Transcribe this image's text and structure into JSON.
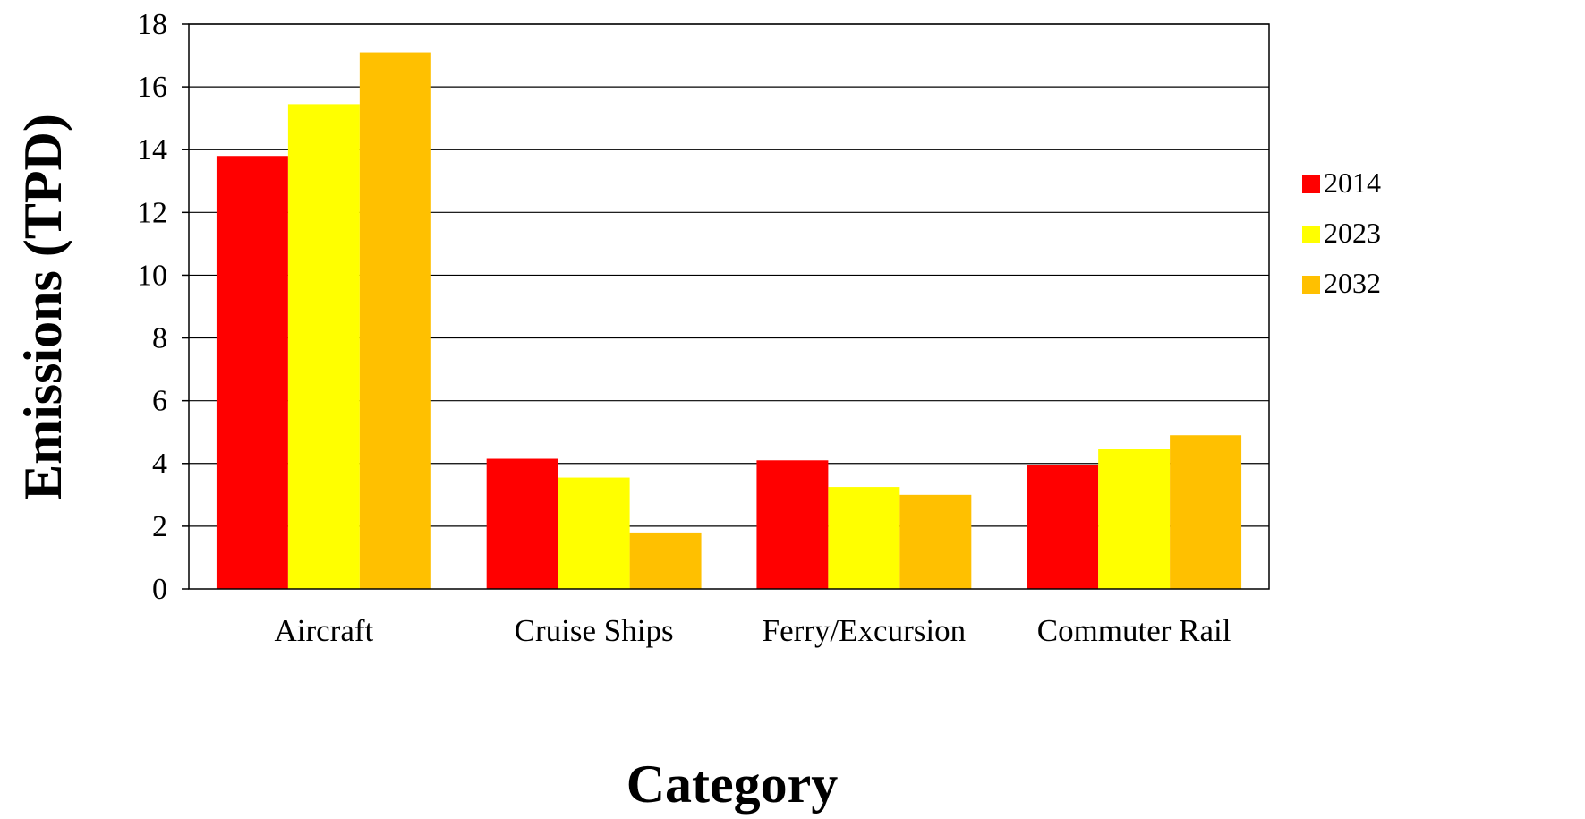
{
  "chart_data": {
    "type": "bar",
    "title": "",
    "xlabel": "Category",
    "ylabel": "Emissions (TPD)",
    "categories": [
      "Aircraft",
      "Cruise Ships",
      "Ferry/Excursion",
      "Commuter Rail"
    ],
    "series": [
      {
        "name": "2014",
        "color": "#ff0000",
        "values": [
          13.8,
          4.15,
          4.1,
          3.95
        ]
      },
      {
        "name": "2023",
        "color": "#ffff00",
        "values": [
          15.45,
          3.55,
          3.25,
          4.45
        ]
      },
      {
        "name": "2032",
        "color": "#ffc000",
        "values": [
          17.1,
          1.8,
          3.0,
          4.9
        ]
      }
    ],
    "ylim": [
      0,
      18
    ],
    "yticks": [
      0,
      2,
      4,
      6,
      8,
      10,
      12,
      14,
      16,
      18
    ],
    "grid": true,
    "legend_position": "right"
  }
}
